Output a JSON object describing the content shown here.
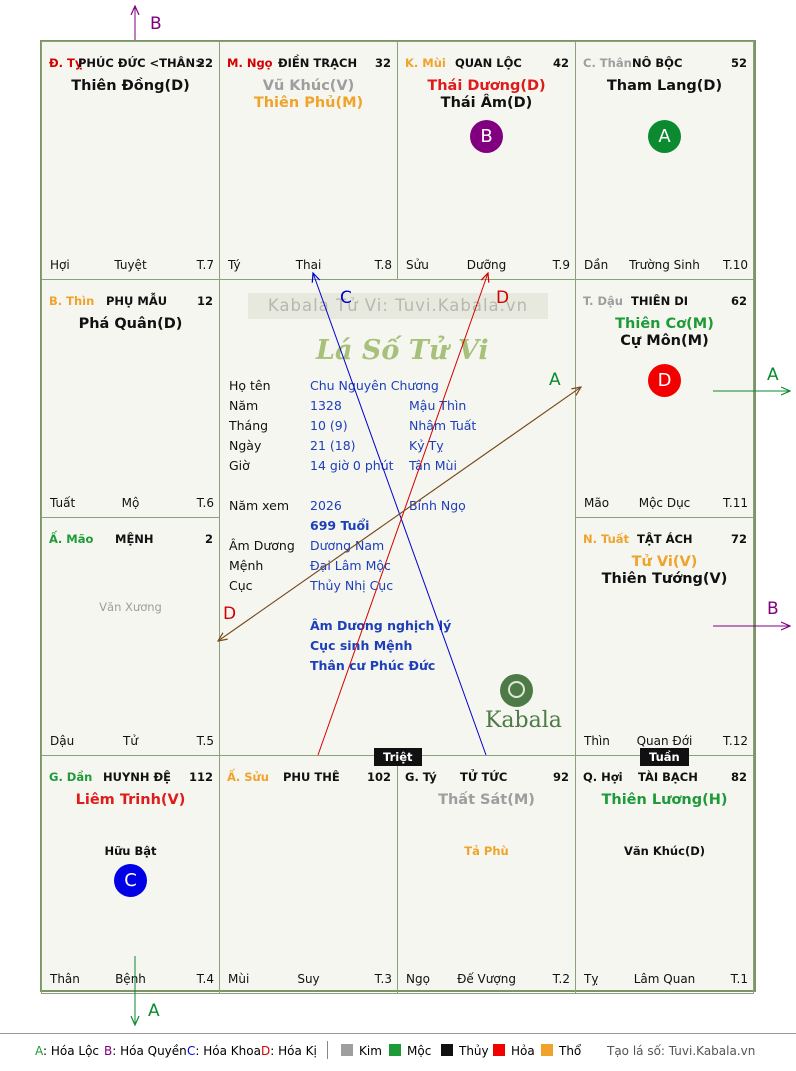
{
  "cells": [
    {
      "key": "ty",
      "can": "Đ. Tỵ",
      "can_color": "#d40000",
      "palace": "PHÚC ĐỨC <THÂN>",
      "age": "22",
      "stars": [
        {
          "t": "Thiên Đồng(D)",
          "c": "#111"
        }
      ],
      "bl": "Hợi",
      "bm": "Tuyệt",
      "br": "T.7"
    },
    {
      "key": "ngo",
      "can": "M. Ngọ",
      "can_color": "#d40000",
      "palace": "ĐIỀN TRẠCH",
      "age": "32",
      "stars": [
        {
          "t": "Vũ Khúc(V)",
          "c": "#9e9e9e"
        },
        {
          "t": "Thiên Phủ(M)",
          "c": "#f0a32a"
        }
      ],
      "bl": "Tý",
      "bm": "Thai",
      "br": "T.8"
    },
    {
      "key": "mui",
      "can": "K. Mùi",
      "can_color": "#f0a32a",
      "palace": "QUAN LỘC",
      "age": "42",
      "stars": [
        {
          "t": "Thái Dương(D)",
          "c": "#e01b1b"
        },
        {
          "t": "Thái Âm(D)",
          "c": "#111"
        }
      ],
      "bl": "Sửu",
      "bm": "Dưỡng",
      "br": "T.9",
      "circle": {
        "letter": "B",
        "color": "#800080"
      }
    },
    {
      "key": "than",
      "can": "C. Thân",
      "can_color": "#9e9e9e",
      "palace": "NÔ BỘC",
      "age": "52",
      "stars": [
        {
          "t": "Tham Lang(D)",
          "c": "#111"
        }
      ],
      "bl": "Dần",
      "bm": "Trường Sinh",
      "br": "T.10",
      "circle": {
        "letter": "A",
        "color": "#0b8a2f"
      }
    },
    {
      "key": "thin",
      "can": "B. Thìn",
      "can_color": "#f0a32a",
      "palace": "PHỤ MẪU",
      "age": "12",
      "stars": [
        {
          "t": "Phá Quân(D)",
          "c": "#111"
        }
      ],
      "bl": "Tuất",
      "bm": "Mộ",
      "br": "T.6"
    },
    {
      "key": "dau",
      "can": "T. Dậu",
      "can_color": "#9e9e9e",
      "palace": "THIÊN DI",
      "age": "62",
      "stars": [
        {
          "t": "Thiên Cơ(M)",
          "c": "#1f9a38"
        },
        {
          "t": "Cự Môn(M)",
          "c": "#111"
        }
      ],
      "bl": "Mão",
      "bm": "Mộc Dục",
      "br": "T.11",
      "circle": {
        "letter": "D",
        "color": "#f20000"
      }
    },
    {
      "key": "mao",
      "can": "Ấ. Mão",
      "can_color": "#1f9a38",
      "palace": "MỆNH",
      "age": "2",
      "stars": [],
      "minor": {
        "t": "Văn Xương",
        "c": "#9e9e9e"
      },
      "bl": "Dậu",
      "bm": "Tử",
      "br": "T.5"
    },
    {
      "key": "tuat",
      "can": "N. Tuất",
      "can_color": "#f0a32a",
      "palace": "TẬT ÁCH",
      "age": "72",
      "stars": [
        {
          "t": "Tử Vi(V)",
          "c": "#f0a32a"
        },
        {
          "t": "Thiên Tướng(V)",
          "c": "#111"
        }
      ],
      "bl": "Thìn",
      "bm": "Quan Đới",
      "br": "T.12"
    },
    {
      "key": "dan",
      "can": "G. Dần",
      "can_color": "#1f9a38",
      "palace": "HUYNH ĐỆ",
      "age": "112",
      "stars": [
        {
          "t": "Liêm Trinh(V)",
          "c": "#e01b1b"
        }
      ],
      "minor": {
        "t": "Hữu Bật",
        "c": "#111"
      },
      "bl": "Thân",
      "bm": "Bệnh",
      "br": "T.4",
      "circle": {
        "letter": "C",
        "color": "#0000e6"
      }
    },
    {
      "key": "suu",
      "can": "Ấ. Sửu",
      "can_color": "#f0a32a",
      "palace": "PHU THÊ",
      "age": "102",
      "stars": [],
      "bl": "Mùi",
      "bm": "Suy",
      "br": "T.3"
    },
    {
      "key": "ty2",
      "can": "G. Tý",
      "can_color": "#111",
      "palace": "TỬ TỨC",
      "age": "92",
      "stars": [
        {
          "t": "Thất Sát(M)",
          "c": "#9e9e9e"
        }
      ],
      "minor": {
        "t": "Tả Phù",
        "c": "#f0a32a"
      },
      "bl": "Ngọ",
      "bm": "Đế Vượng",
      "br": "T.2"
    },
    {
      "key": "hoi",
      "can": "Q. Hợi",
      "can_color": "#111",
      "palace": "TÀI BẠCH",
      "age": "82",
      "stars": [
        {
          "t": "Thiên Lương(H)",
          "c": "#1f9a38"
        }
      ],
      "minor": {
        "t": "Văn Khúc(D)",
        "c": "#111"
      },
      "bl": "Tỵ",
      "bm": "Lâm Quan",
      "br": "T.1"
    }
  ],
  "center": {
    "watermark": "Kabala Tử Vi: Tuvi.Kabala.vn",
    "title": "Lá Số Tử Vi",
    "rows": [
      {
        "label": "Họ tên",
        "v1": "Chu Nguyên Chương",
        "v2": ""
      },
      {
        "label": "Năm",
        "v1": "1328",
        "v2": "Mậu Thìn"
      },
      {
        "label": "Tháng",
        "v1": "10  (9)",
        "v2": "Nhâm Tuất"
      },
      {
        "label": "Ngày",
        "v1": "21  (18)",
        "v2": "Kỷ Tỵ"
      },
      {
        "label": "Giờ",
        "v1": "14 giờ 0 phút",
        "v2": "Tân Mùi"
      }
    ],
    "year_label": "Năm xem",
    "year": "2026",
    "year_can": "Bính Ngọ",
    "age": "699 Tuổi",
    "rows2": [
      {
        "label": "Âm Dương",
        "v1": "Dương Nam"
      },
      {
        "label": "Mệnh",
        "v1": "Đại Lâm Mộc"
      },
      {
        "label": "Cục",
        "v1": "Thủy Nhị Cục"
      }
    ],
    "notes": [
      "Âm Dương nghịch lý",
      "Cục sinh Mệnh",
      "Thân cư Phúc Đức"
    ],
    "logo_text": "Kabala"
  },
  "tags": {
    "triet": "Triệt",
    "tuan": "Tuần"
  },
  "arrows": {
    "a": "A",
    "b": "B",
    "c": "C",
    "d": "D"
  },
  "legend": {
    "items": [
      {
        "letter": "A",
        "text": ": Hóa Lộc",
        "color": "#1f9a38"
      },
      {
        "letter": "B",
        "text": ": Hóa Quyền",
        "color": "#800080"
      },
      {
        "letter": "C",
        "text": ": Hóa Khoa",
        "color": "#0000e6"
      },
      {
        "letter": "D",
        "text": ": Hóa Kị",
        "color": "#d40000"
      }
    ],
    "elements": [
      {
        "name": "Kim",
        "color": "#9e9e9e"
      },
      {
        "name": "Mộc",
        "color": "#1f9a38"
      },
      {
        "name": "Thủy",
        "color": "#111111"
      },
      {
        "name": "Hỏa",
        "color": "#f20000"
      },
      {
        "name": "Thổ",
        "color": "#f0a32a"
      }
    ],
    "credit": "Tạo lá số: Tuvi.Kabala.vn"
  }
}
